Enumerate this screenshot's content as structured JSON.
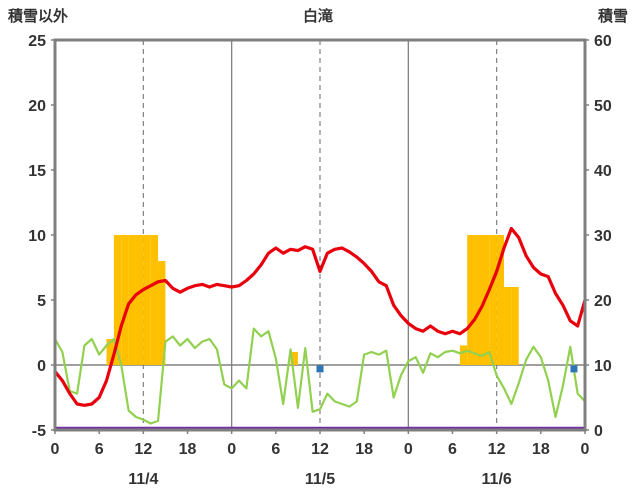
{
  "header": {
    "left_axis_title": "積雪以外",
    "title": "白滝",
    "right_axis_title": "積雪"
  },
  "chart_data": {
    "type": "line",
    "title": "白滝",
    "left_axis": {
      "label": "積雪以外",
      "min": -5,
      "max": 25,
      "ticks": [
        -5,
        0,
        5,
        10,
        15,
        20,
        25
      ]
    },
    "right_axis": {
      "label": "積雪",
      "min": 0,
      "max": 60,
      "ticks": [
        0,
        10,
        20,
        30,
        40,
        50,
        60
      ]
    },
    "x_axis": {
      "hours_total": 72,
      "tick_interval_hours": 6,
      "tick_labels": [
        "0",
        "6",
        "12",
        "18",
        "0",
        "6",
        "12",
        "18",
        "0",
        "6",
        "12",
        "18",
        "0"
      ],
      "day_labels": [
        "11/4",
        "11/5",
        "11/6"
      ],
      "day_label_hours": [
        12,
        36,
        60
      ],
      "gridline_hours_dashed": [
        12,
        36,
        60
      ],
      "gridline_hours_solid": [
        24,
        48
      ]
    },
    "colors": {
      "grid": "#808080",
      "border": "#7f7f7f",
      "zero_line": "#808080",
      "text": "#333333"
    },
    "series": [
      {
        "name": "green-line",
        "color": "#92d050",
        "axis": "left",
        "line_width": 2.2,
        "values": [
          2,
          1,
          -2,
          -2.2,
          1.5,
          2,
          0.8,
          1.5,
          2,
          0,
          -3.5,
          -4,
          -4.2,
          -4.5,
          -4.3,
          1.8,
          2.2,
          1.5,
          2,
          1.3,
          1.8,
          2,
          1.2,
          -1.5,
          -1.8,
          -1.2,
          -1.8,
          2.8,
          2.2,
          2.6,
          0.5,
          -3,
          1.2,
          -3.3,
          1.3,
          -3.6,
          -3.4,
          -2.2,
          -2.8,
          -3,
          -3.2,
          -2.8,
          0.8,
          1,
          0.8,
          1.1,
          -2.5,
          -0.8,
          0.3,
          0.6,
          -0.6,
          0.9,
          0.6,
          1,
          1.1,
          0.9,
          1.1,
          0.9,
          0.7,
          1,
          -0.8,
          -1.8,
          -3,
          -1.4,
          0.4,
          1.4,
          0.6,
          -1.2,
          -4,
          -1.6,
          1.4,
          -2.2,
          -2.8
        ]
      },
      {
        "name": "red-line",
        "color": "#e8000d",
        "axis": "left",
        "line_width": 3.2,
        "values": [
          -0.5,
          -1.2,
          -2.2,
          -3,
          -3.1,
          -3,
          -2.5,
          -1.2,
          0.8,
          3,
          4.7,
          5.4,
          5.8,
          6.1,
          6.4,
          6.5,
          5.9,
          5.6,
          5.9,
          6.1,
          6.2,
          6,
          6.2,
          6.1,
          6,
          6.1,
          6.5,
          7,
          7.7,
          8.6,
          9,
          8.6,
          8.9,
          8.8,
          9.1,
          8.9,
          7.2,
          8.6,
          8.9,
          9,
          8.7,
          8.3,
          7.8,
          7.2,
          6.4,
          6.1,
          4.6,
          3.8,
          3.2,
          2.8,
          2.6,
          3,
          2.6,
          2.4,
          2.6,
          2.4,
          2.8,
          3.5,
          4.5,
          5.8,
          7.2,
          9,
          10.5,
          9.8,
          8.4,
          7.5,
          7,
          6.8,
          5.5,
          4.6,
          3.4,
          3,
          5
        ]
      }
    ],
    "bars": {
      "name": "orange-bars",
      "color": "#ffc000",
      "axis": "left",
      "points": [
        {
          "hour": 7,
          "value": 2
        },
        {
          "hour": 8,
          "value": 10
        },
        {
          "hour": 9,
          "value": 10
        },
        {
          "hour": 10,
          "value": 10
        },
        {
          "hour": 11,
          "value": 10
        },
        {
          "hour": 12,
          "value": 10
        },
        {
          "hour": 13,
          "value": 10
        },
        {
          "hour": 14,
          "value": 8
        },
        {
          "hour": 32,
          "value": 1
        },
        {
          "hour": 55,
          "value": 1.5
        },
        {
          "hour": 56,
          "value": 10
        },
        {
          "hour": 57,
          "value": 10
        },
        {
          "hour": 58,
          "value": 10
        },
        {
          "hour": 59,
          "value": 10
        },
        {
          "hour": 60,
          "value": 10
        },
        {
          "hour": 61,
          "value": 6
        },
        {
          "hour": 62,
          "value": 6
        }
      ]
    },
    "snow_line": {
      "name": "purple-line",
      "color": "#7030a0",
      "axis": "right",
      "value": 0,
      "line_width": 2.5
    },
    "markers": {
      "name": "blue-square-markers",
      "color": "#2e75b6",
      "axis": "left",
      "size": 7,
      "points": [
        {
          "hour": 36,
          "value": -0.3
        },
        {
          "hour": 70.5,
          "value": -0.3
        }
      ]
    }
  }
}
